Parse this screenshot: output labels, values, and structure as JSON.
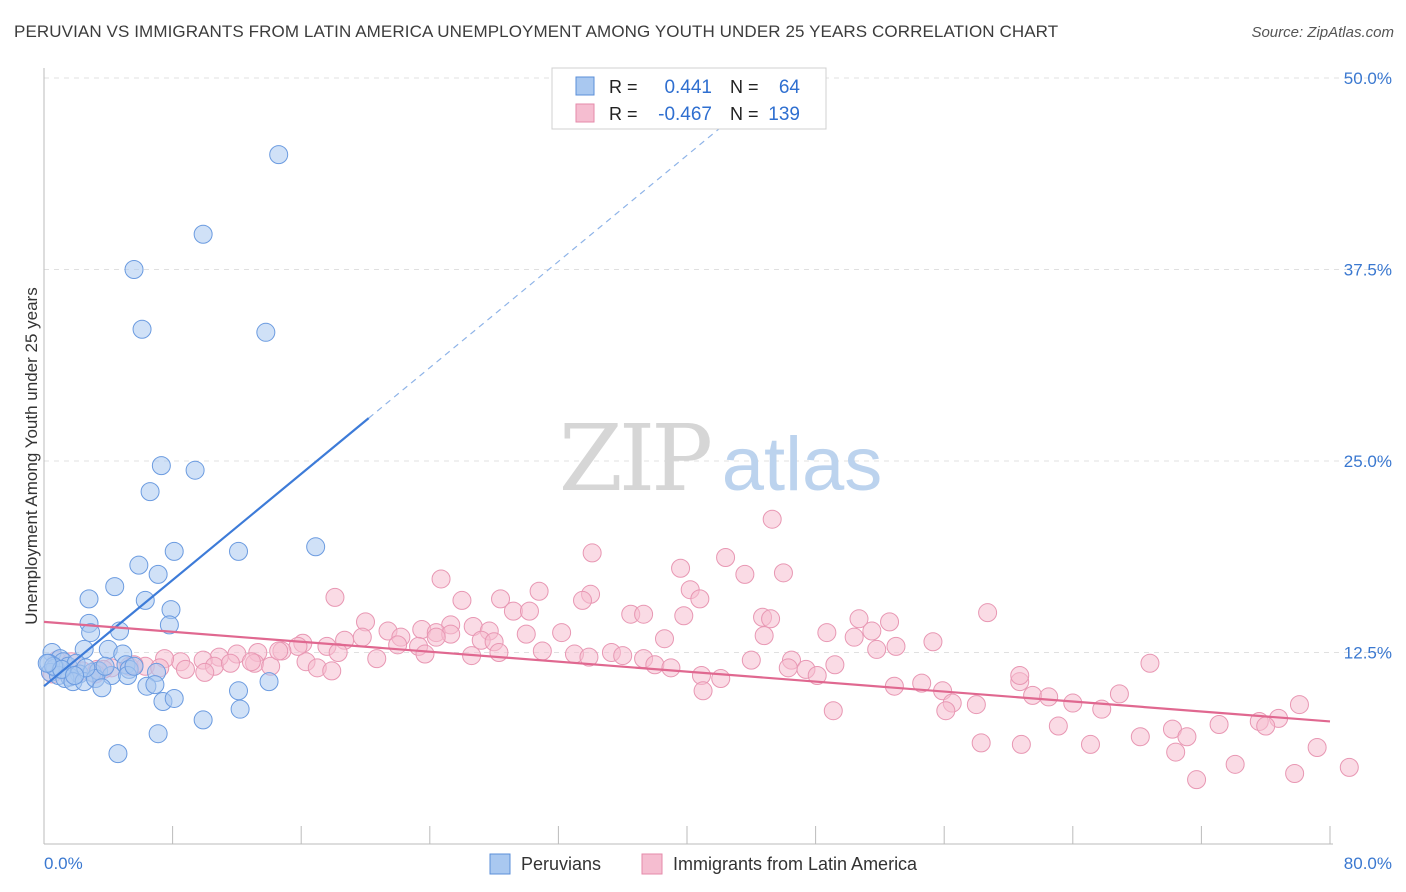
{
  "title": "PERUVIAN VS IMMIGRANTS FROM LATIN AMERICA UNEMPLOYMENT AMONG YOUTH UNDER 25 YEARS CORRELATION CHART",
  "source": "Source: ZipAtlas.com",
  "watermark": {
    "zip": "ZIP",
    "atlas": "atlas"
  },
  "stats": [
    {
      "r_label": "R =",
      "r_value": "0.441",
      "n_label": "N =",
      "n_value": "64"
    },
    {
      "r_label": "R =",
      "r_value": "-0.467",
      "n_label": "N =",
      "n_value": "139"
    }
  ],
  "legend": [
    "Peruvians",
    "Immigrants from Latin America"
  ],
  "colors": {
    "blue": "#3d7bd8",
    "blue_fill": "#a9c8f0",
    "blue_text": "#2f6fd0",
    "pink": "#e06890",
    "pink_fill": "#f5bdd0",
    "grid": "#e0e0e0"
  },
  "chart_data": {
    "type": "scatter",
    "title": "PERUVIAN VS IMMIGRANTS FROM LATIN AMERICA UNEMPLOYMENT AMONG YOUTH UNDER 25 YEARS CORRELATION CHART",
    "xlabel": "",
    "ylabel": "Unemployment Among Youth under 25 years",
    "xlim": [
      0,
      80
    ],
    "ylim": [
      0,
      50
    ],
    "x_tick_labels": [
      "0.0%",
      "80.0%"
    ],
    "y_ticks": [
      12.5,
      25.0,
      37.5,
      50.0
    ],
    "y_tick_labels": [
      "12.5%",
      "25.0%",
      "37.5%",
      "50.0%"
    ],
    "series": [
      {
        "name": "Peruvians",
        "r": 0.441,
        "n": 64,
        "trend": {
          "x0": 0,
          "y0": 10.3,
          "x1": 20.2,
          "y1": 27.8,
          "dash_to_x": 42.5
        },
        "points": [
          [
            14.6,
            45.0
          ],
          [
            9.9,
            39.8
          ],
          [
            5.6,
            37.5
          ],
          [
            6.1,
            33.6
          ],
          [
            13.8,
            33.4
          ],
          [
            7.3,
            24.7
          ],
          [
            9.4,
            24.4
          ],
          [
            6.6,
            23.0
          ],
          [
            8.1,
            19.1
          ],
          [
            12.1,
            19.1
          ],
          [
            16.9,
            19.4
          ],
          [
            5.9,
            18.2
          ],
          [
            7.1,
            17.6
          ],
          [
            4.4,
            16.8
          ],
          [
            2.8,
            16.0
          ],
          [
            6.3,
            15.9
          ],
          [
            7.9,
            15.3
          ],
          [
            7.8,
            14.3
          ],
          [
            2.8,
            14.4
          ],
          [
            4.7,
            13.9
          ],
          [
            2.9,
            13.8
          ],
          [
            2.5,
            12.7
          ],
          [
            4.0,
            12.7
          ],
          [
            4.9,
            12.4
          ],
          [
            0.5,
            12.5
          ],
          [
            1.0,
            12.1
          ],
          [
            1.2,
            11.9
          ],
          [
            0.3,
            11.8
          ],
          [
            0.7,
            11.5
          ],
          [
            1.5,
            11.6
          ],
          [
            2.0,
            11.8
          ],
          [
            0.4,
            11.2
          ],
          [
            0.9,
            11.0
          ],
          [
            1.6,
            10.9
          ],
          [
            2.2,
            11.1
          ],
          [
            3.0,
            11.2
          ],
          [
            3.4,
            11.3
          ],
          [
            4.2,
            11.0
          ],
          [
            5.1,
            11.7
          ],
          [
            5.3,
            11.4
          ],
          [
            5.2,
            11.0
          ],
          [
            7.0,
            11.2
          ],
          [
            1.3,
            10.8
          ],
          [
            1.8,
            10.6
          ],
          [
            2.5,
            10.6
          ],
          [
            3.2,
            10.8
          ],
          [
            3.6,
            10.2
          ],
          [
            6.4,
            10.3
          ],
          [
            6.9,
            10.4
          ],
          [
            12.1,
            10.0
          ],
          [
            14.0,
            10.6
          ],
          [
            7.4,
            9.3
          ],
          [
            8.1,
            9.5
          ],
          [
            12.2,
            8.8
          ],
          [
            9.9,
            8.1
          ],
          [
            7.1,
            7.2
          ],
          [
            4.6,
            5.9
          ],
          [
            0.6,
            11.6
          ],
          [
            1.1,
            11.4
          ],
          [
            0.2,
            11.8
          ],
          [
            2.6,
            11.5
          ],
          [
            3.8,
            11.6
          ],
          [
            5.6,
            11.6
          ],
          [
            1.9,
            11.0
          ]
        ]
      },
      {
        "name": "Immigrants from Latin America",
        "r": -0.467,
        "n": 139,
        "trend": {
          "x0": 0,
          "y0": 14.5,
          "x1": 80,
          "y1": 8.0
        },
        "points": [
          [
            45.3,
            21.2
          ],
          [
            34.1,
            19.0
          ],
          [
            42.4,
            18.7
          ],
          [
            39.6,
            18.0
          ],
          [
            43.6,
            17.6
          ],
          [
            46.0,
            17.7
          ],
          [
            24.7,
            17.3
          ],
          [
            30.8,
            16.5
          ],
          [
            34.0,
            16.3
          ],
          [
            40.2,
            16.6
          ],
          [
            18.1,
            16.1
          ],
          [
            26.0,
            15.9
          ],
          [
            28.4,
            16.0
          ],
          [
            33.5,
            15.9
          ],
          [
            29.2,
            15.2
          ],
          [
            30.2,
            15.2
          ],
          [
            36.5,
            15.0
          ],
          [
            37.3,
            15.0
          ],
          [
            39.8,
            14.9
          ],
          [
            44.7,
            14.8
          ],
          [
            45.2,
            14.7
          ],
          [
            50.7,
            14.7
          ],
          [
            58.7,
            15.1
          ],
          [
            20.0,
            14.5
          ],
          [
            23.5,
            14.0
          ],
          [
            25.3,
            14.3
          ],
          [
            26.7,
            14.2
          ],
          [
            27.7,
            13.9
          ],
          [
            30.0,
            13.7
          ],
          [
            32.2,
            13.8
          ],
          [
            21.4,
            13.9
          ],
          [
            22.2,
            13.5
          ],
          [
            24.4,
            13.8
          ],
          [
            25.3,
            13.7
          ],
          [
            27.2,
            13.3
          ],
          [
            28.0,
            13.2
          ],
          [
            18.7,
            13.3
          ],
          [
            19.8,
            13.5
          ],
          [
            22.0,
            13.0
          ],
          [
            23.3,
            12.9
          ],
          [
            16.1,
            13.1
          ],
          [
            17.6,
            12.9
          ],
          [
            15.8,
            12.9
          ],
          [
            14.8,
            12.6
          ],
          [
            13.3,
            12.5
          ],
          [
            12.0,
            12.4
          ],
          [
            10.9,
            12.2
          ],
          [
            9.9,
            12.0
          ],
          [
            8.5,
            11.9
          ],
          [
            7.5,
            12.1
          ],
          [
            6.3,
            11.6
          ],
          [
            5.3,
            11.6
          ],
          [
            4.2,
            11.5
          ],
          [
            3.3,
            11.4
          ],
          [
            2.4,
            11.3
          ],
          [
            1.5,
            11.2
          ],
          [
            0.5,
            11.1
          ],
          [
            0.8,
            12.0
          ],
          [
            1.7,
            11.9
          ],
          [
            3.7,
            11.4
          ],
          [
            5.6,
            11.7
          ],
          [
            7.2,
            11.5
          ],
          [
            8.8,
            11.4
          ],
          [
            10.6,
            11.6
          ],
          [
            11.6,
            11.8
          ],
          [
            13.1,
            11.8
          ],
          [
            14.1,
            11.6
          ],
          [
            16.3,
            11.9
          ],
          [
            17.0,
            11.5
          ],
          [
            18.3,
            12.5
          ],
          [
            20.7,
            12.1
          ],
          [
            23.7,
            12.4
          ],
          [
            26.6,
            12.3
          ],
          [
            28.3,
            12.5
          ],
          [
            31.0,
            12.6
          ],
          [
            33.0,
            12.4
          ],
          [
            35.3,
            12.5
          ],
          [
            36.0,
            12.3
          ],
          [
            37.3,
            12.1
          ],
          [
            38.0,
            11.7
          ],
          [
            39.0,
            11.5
          ],
          [
            40.9,
            11.0
          ],
          [
            42.1,
            10.8
          ],
          [
            44.0,
            12.0
          ],
          [
            46.5,
            12.0
          ],
          [
            47.4,
            11.4
          ],
          [
            48.1,
            11.0
          ],
          [
            49.2,
            11.7
          ],
          [
            51.8,
            12.7
          ],
          [
            50.4,
            13.5
          ],
          [
            51.5,
            13.9
          ],
          [
            52.9,
            10.3
          ],
          [
            54.6,
            10.5
          ],
          [
            55.9,
            10.0
          ],
          [
            56.5,
            9.2
          ],
          [
            58.0,
            9.1
          ],
          [
            60.7,
            10.6
          ],
          [
            61.5,
            9.7
          ],
          [
            62.5,
            9.6
          ],
          [
            64.0,
            9.2
          ],
          [
            65.8,
            8.8
          ],
          [
            68.8,
            11.8
          ],
          [
            70.2,
            7.5
          ],
          [
            71.1,
            7.0
          ],
          [
            73.1,
            7.8
          ],
          [
            75.6,
            8.0
          ],
          [
            76.8,
            8.2
          ],
          [
            78.1,
            9.1
          ],
          [
            55.3,
            13.2
          ],
          [
            60.7,
            11.0
          ],
          [
            3.2,
            11.1
          ],
          [
            10.0,
            11.2
          ],
          [
            12.9,
            11.9
          ],
          [
            14.6,
            12.6
          ],
          [
            17.9,
            11.3
          ],
          [
            24.4,
            13.5
          ],
          [
            33.9,
            12.2
          ],
          [
            38.6,
            13.4
          ],
          [
            40.8,
            16.0
          ],
          [
            44.8,
            13.6
          ],
          [
            46.3,
            11.5
          ],
          [
            48.7,
            13.8
          ],
          [
            52.6,
            14.5
          ],
          [
            53.0,
            12.9
          ],
          [
            41.0,
            10.0
          ],
          [
            49.1,
            8.7
          ],
          [
            56.1,
            8.7
          ],
          [
            58.3,
            6.6
          ],
          [
            60.8,
            6.5
          ],
          [
            63.1,
            7.7
          ],
          [
            65.1,
            6.5
          ],
          [
            66.9,
            9.8
          ],
          [
            68.2,
            7.0
          ],
          [
            70.4,
            6.0
          ],
          [
            71.7,
            4.2
          ],
          [
            74.1,
            5.2
          ],
          [
            76.0,
            7.7
          ],
          [
            77.8,
            4.6
          ],
          [
            79.2,
            6.3
          ],
          [
            81.2,
            5.0
          ]
        ]
      }
    ]
  }
}
